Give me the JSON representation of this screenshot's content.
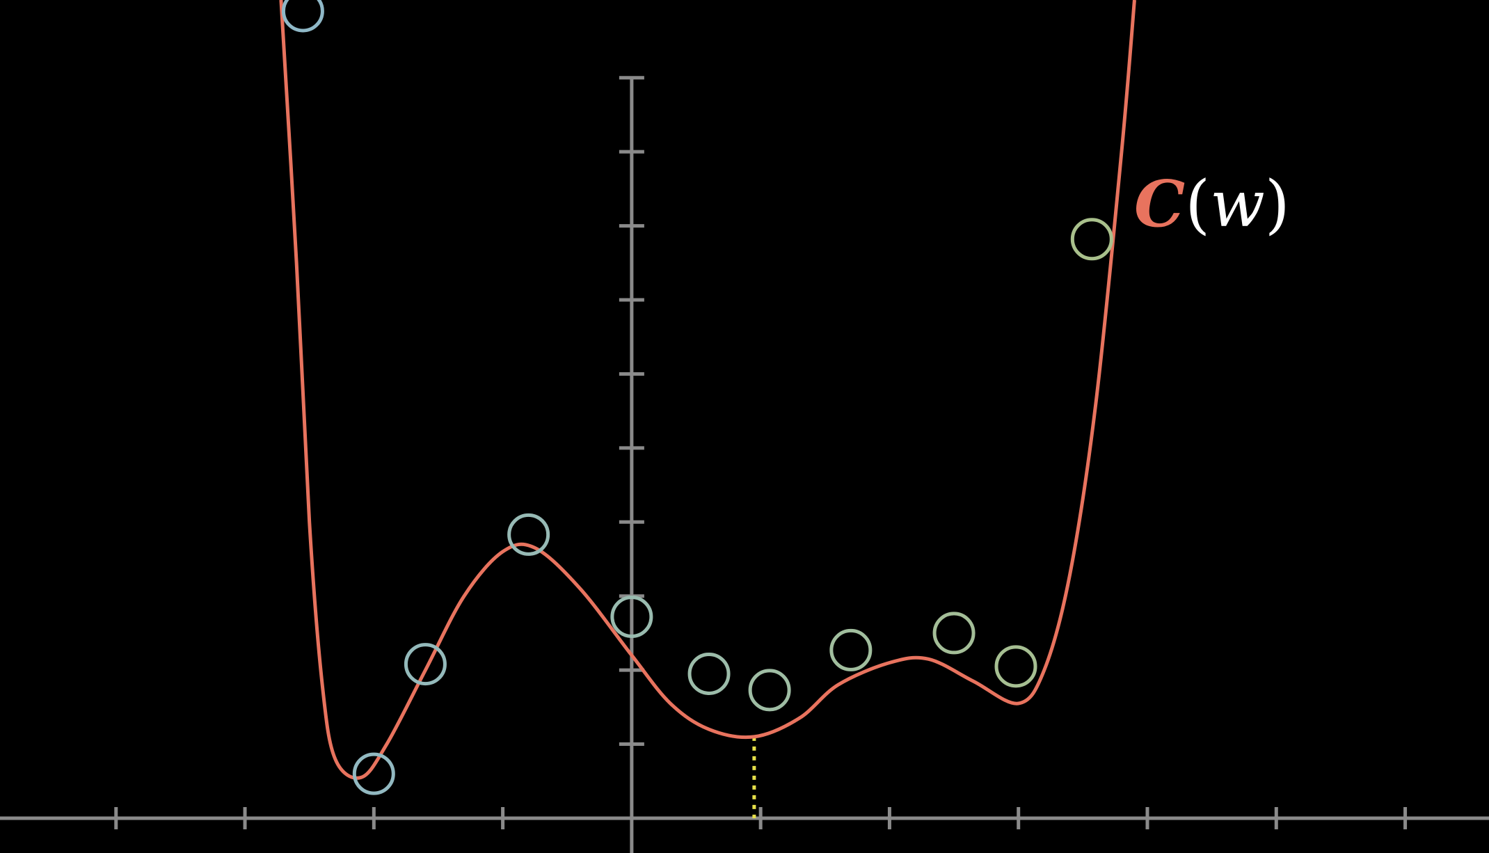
{
  "chart_data": {
    "type": "line",
    "title": "",
    "xlabel": "",
    "ylabel": "",
    "xlim": [
      -4.9,
      6.65
    ],
    "ylim": [
      -0.47,
      11.05
    ],
    "x_ticks": [
      -4,
      -3,
      -2,
      -1,
      1,
      2,
      3,
      4,
      5,
      6
    ],
    "y_ticks": [
      1,
      2,
      3,
      4,
      5,
      6,
      7,
      8,
      9,
      10
    ],
    "grid": false,
    "series": [
      {
        "name": "C(w)",
        "label_parts": {
          "name": "C",
          "open": "(",
          "var": "w",
          "close": ")"
        },
        "color": "#E8735E",
        "points": [
          [
            -2.72,
            11.05
          ],
          [
            -2.6,
            7.5
          ],
          [
            -2.5,
            4.0
          ],
          [
            -2.4,
            1.8
          ],
          [
            -2.3,
            0.8
          ],
          [
            -2.1,
            0.55
          ],
          [
            -1.9,
            1.0
          ],
          [
            -1.6,
            2.0
          ],
          [
            -1.3,
            3.0
          ],
          [
            -1.0,
            3.6
          ],
          [
            -0.75,
            3.65
          ],
          [
            -0.4,
            3.1
          ],
          [
            0.0,
            2.2
          ],
          [
            0.3,
            1.55
          ],
          [
            0.6,
            1.2
          ],
          [
            0.95,
            1.1
          ],
          [
            1.3,
            1.35
          ],
          [
            1.6,
            1.8
          ],
          [
            2.0,
            2.1
          ],
          [
            2.3,
            2.15
          ],
          [
            2.65,
            1.85
          ],
          [
            3.0,
            1.55
          ],
          [
            3.2,
            2.0
          ],
          [
            3.4,
            3.3
          ],
          [
            3.6,
            5.6
          ],
          [
            3.8,
            9.0
          ],
          [
            3.9,
            11.05
          ]
        ]
      }
    ],
    "samples": {
      "marker": "circle",
      "stroke_from": "#8FB8C7",
      "stroke_to": "#A9C08C",
      "points": [
        [
          -2.55,
          10.9
        ],
        [
          -2.0,
          0.6
        ],
        [
          -1.6,
          2.08
        ],
        [
          -0.8,
          3.83
        ],
        [
          0.0,
          2.72
        ],
        [
          0.6,
          1.95
        ],
        [
          1.07,
          1.73
        ],
        [
          1.7,
          2.27
        ],
        [
          2.5,
          2.5
        ],
        [
          2.98,
          2.05
        ],
        [
          3.57,
          7.82
        ]
      ]
    },
    "marker_line": {
      "x": 0.95,
      "color": "#E6E04A",
      "style": "dotted"
    }
  }
}
